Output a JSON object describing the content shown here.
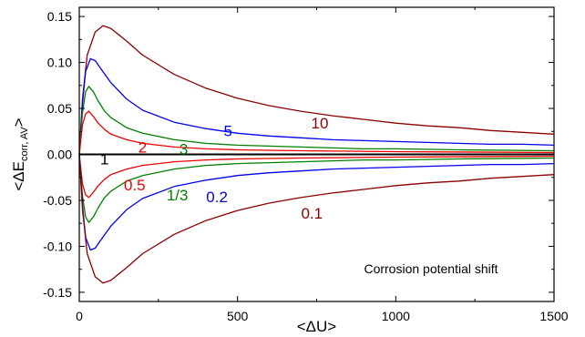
{
  "chart_data": {
    "type": "line",
    "title": "",
    "xlabel": "<ΔU>",
    "ylabel_main": "<ΔE",
    "ylabel_sub": "corr, AV",
    "ylabel_end": ">",
    "xlim": [
      0,
      1500
    ],
    "ylim": [
      -0.16,
      0.16
    ],
    "xticks": [
      0,
      500,
      1000,
      1500
    ],
    "yticks": [
      -0.15,
      -0.1,
      -0.05,
      0.0,
      0.05,
      0.1,
      0.15
    ],
    "xtick_labels": [
      "0",
      "500",
      "1000",
      "1500"
    ],
    "ytick_labels": [
      "-0.15",
      "-0.10",
      "-0.05",
      "0.00",
      "0.05",
      "0.10",
      "0.15"
    ],
    "grid": false,
    "annotation": "Corrosion potential shift",
    "series": [
      {
        "name": "10",
        "color": "#8b0000",
        "points": [
          [
            0,
            0
          ],
          [
            10,
            0.06
          ],
          [
            25,
            0.108
          ],
          [
            50,
            0.133
          ],
          [
            75,
            0.14
          ],
          [
            100,
            0.137
          ],
          [
            150,
            0.123
          ],
          [
            200,
            0.108
          ],
          [
            300,
            0.087
          ],
          [
            400,
            0.072
          ],
          [
            500,
            0.061
          ],
          [
            600,
            0.053
          ],
          [
            700,
            0.047
          ],
          [
            800,
            0.042
          ],
          [
            900,
            0.038
          ],
          [
            1000,
            0.034
          ],
          [
            1100,
            0.031
          ],
          [
            1200,
            0.029
          ],
          [
            1300,
            0.026
          ],
          [
            1400,
            0.024
          ],
          [
            1500,
            0.022
          ]
        ]
      },
      {
        "name": "5",
        "color": "#0000ee",
        "points": [
          [
            0,
            0
          ],
          [
            10,
            0.055
          ],
          [
            20,
            0.09
          ],
          [
            35,
            0.104
          ],
          [
            50,
            0.102
          ],
          [
            75,
            0.09
          ],
          [
            100,
            0.078
          ],
          [
            150,
            0.06
          ],
          [
            200,
            0.048
          ],
          [
            300,
            0.035
          ],
          [
            400,
            0.028
          ],
          [
            500,
            0.023
          ],
          [
            600,
            0.02
          ],
          [
            700,
            0.018
          ],
          [
            800,
            0.016
          ],
          [
            900,
            0.015
          ],
          [
            1000,
            0.014
          ],
          [
            1100,
            0.013
          ],
          [
            1200,
            0.012
          ],
          [
            1300,
            0.011
          ],
          [
            1400,
            0.011
          ],
          [
            1500,
            0.01
          ]
        ]
      },
      {
        "name": "3",
        "color": "#008000",
        "points": [
          [
            0,
            0
          ],
          [
            10,
            0.045
          ],
          [
            20,
            0.068
          ],
          [
            30,
            0.074
          ],
          [
            45,
            0.068
          ],
          [
            60,
            0.058
          ],
          [
            80,
            0.047
          ],
          [
            100,
            0.04
          ],
          [
            150,
            0.029
          ],
          [
            200,
            0.023
          ],
          [
            300,
            0.016
          ],
          [
            400,
            0.012
          ],
          [
            500,
            0.01
          ],
          [
            600,
            0.009
          ],
          [
            700,
            0.008
          ],
          [
            800,
            0.007
          ],
          [
            900,
            0.006
          ],
          [
            1000,
            0.006
          ],
          [
            1200,
            0.005
          ],
          [
            1500,
            0.004
          ]
        ]
      },
      {
        "name": "2",
        "color": "#ee0000",
        "points": [
          [
            0,
            0
          ],
          [
            10,
            0.032
          ],
          [
            20,
            0.044
          ],
          [
            30,
            0.047
          ],
          [
            45,
            0.041
          ],
          [
            60,
            0.034
          ],
          [
            80,
            0.027
          ],
          [
            100,
            0.022
          ],
          [
            150,
            0.016
          ],
          [
            200,
            0.012
          ],
          [
            300,
            0.008
          ],
          [
            400,
            0.006
          ],
          [
            500,
            0.005
          ],
          [
            700,
            0.004
          ],
          [
            1000,
            0.003
          ],
          [
            1500,
            0.002
          ]
        ]
      },
      {
        "name": "1",
        "color": "#000000",
        "points": [
          [
            0,
            0
          ],
          [
            1500,
            0
          ]
        ]
      },
      {
        "name": "0.5",
        "color": "#ee0000",
        "points": [
          [
            0,
            0
          ],
          [
            10,
            -0.032
          ],
          [
            20,
            -0.044
          ],
          [
            30,
            -0.047
          ],
          [
            45,
            -0.041
          ],
          [
            60,
            -0.034
          ],
          [
            80,
            -0.027
          ],
          [
            100,
            -0.022
          ],
          [
            150,
            -0.016
          ],
          [
            200,
            -0.012
          ],
          [
            300,
            -0.008
          ],
          [
            400,
            -0.006
          ],
          [
            500,
            -0.005
          ],
          [
            700,
            -0.004
          ],
          [
            1000,
            -0.003
          ],
          [
            1500,
            -0.002
          ]
        ]
      },
      {
        "name": "1/3",
        "color": "#008000",
        "points": [
          [
            0,
            0
          ],
          [
            10,
            -0.045
          ],
          [
            20,
            -0.068
          ],
          [
            30,
            -0.074
          ],
          [
            45,
            -0.068
          ],
          [
            60,
            -0.058
          ],
          [
            80,
            -0.047
          ],
          [
            100,
            -0.04
          ],
          [
            150,
            -0.029
          ],
          [
            200,
            -0.023
          ],
          [
            300,
            -0.016
          ],
          [
            400,
            -0.012
          ],
          [
            500,
            -0.01
          ],
          [
            600,
            -0.009
          ],
          [
            700,
            -0.008
          ],
          [
            800,
            -0.007
          ],
          [
            900,
            -0.006
          ],
          [
            1000,
            -0.006
          ],
          [
            1200,
            -0.005
          ],
          [
            1500,
            -0.004
          ]
        ]
      },
      {
        "name": "0.2",
        "color": "#0000ee",
        "points": [
          [
            0,
            0
          ],
          [
            10,
            -0.055
          ],
          [
            20,
            -0.09
          ],
          [
            35,
            -0.104
          ],
          [
            50,
            -0.102
          ],
          [
            75,
            -0.09
          ],
          [
            100,
            -0.078
          ],
          [
            150,
            -0.06
          ],
          [
            200,
            -0.048
          ],
          [
            300,
            -0.035
          ],
          [
            400,
            -0.028
          ],
          [
            500,
            -0.023
          ],
          [
            600,
            -0.02
          ],
          [
            700,
            -0.018
          ],
          [
            800,
            -0.016
          ],
          [
            900,
            -0.015
          ],
          [
            1000,
            -0.014
          ],
          [
            1100,
            -0.013
          ],
          [
            1200,
            -0.012
          ],
          [
            1300,
            -0.011
          ],
          [
            1400,
            -0.011
          ],
          [
            1500,
            -0.01
          ]
        ]
      },
      {
        "name": "0.1",
        "color": "#8b0000",
        "points": [
          [
            0,
            0
          ],
          [
            10,
            -0.06
          ],
          [
            25,
            -0.108
          ],
          [
            50,
            -0.133
          ],
          [
            75,
            -0.14
          ],
          [
            100,
            -0.137
          ],
          [
            150,
            -0.123
          ],
          [
            200,
            -0.108
          ],
          [
            300,
            -0.087
          ],
          [
            400,
            -0.072
          ],
          [
            500,
            -0.061
          ],
          [
            600,
            -0.053
          ],
          [
            700,
            -0.047
          ],
          [
            800,
            -0.042
          ],
          [
            900,
            -0.038
          ],
          [
            1000,
            -0.034
          ],
          [
            1100,
            -0.031
          ],
          [
            1200,
            -0.029
          ],
          [
            1300,
            -0.026
          ],
          [
            1400,
            -0.024
          ],
          [
            1500,
            -0.022
          ]
        ]
      }
    ],
    "curve_labels": [
      {
        "text": "10",
        "x": 760,
        "y": 0.028,
        "color": "#8b0000"
      },
      {
        "text": "5",
        "x": 470,
        "y": 0.02,
        "color": "#0000ee"
      },
      {
        "text": "3",
        "x": 330,
        "y": 0.0,
        "color": "#008000"
      },
      {
        "text": "2",
        "x": 200,
        "y": 0.002,
        "color": "#ee0000"
      },
      {
        "text": "1",
        "x": 80,
        "y": -0.011,
        "color": "#000000"
      },
      {
        "text": "0.5",
        "x": 175,
        "y": -0.039,
        "color": "#ee0000"
      },
      {
        "text": "1/3",
        "x": 310,
        "y": -0.05,
        "color": "#008000"
      },
      {
        "text": "0.2",
        "x": 435,
        "y": -0.052,
        "color": "#0000ee"
      },
      {
        "text": "0.1",
        "x": 735,
        "y": -0.07,
        "color": "#8b0000"
      }
    ]
  }
}
